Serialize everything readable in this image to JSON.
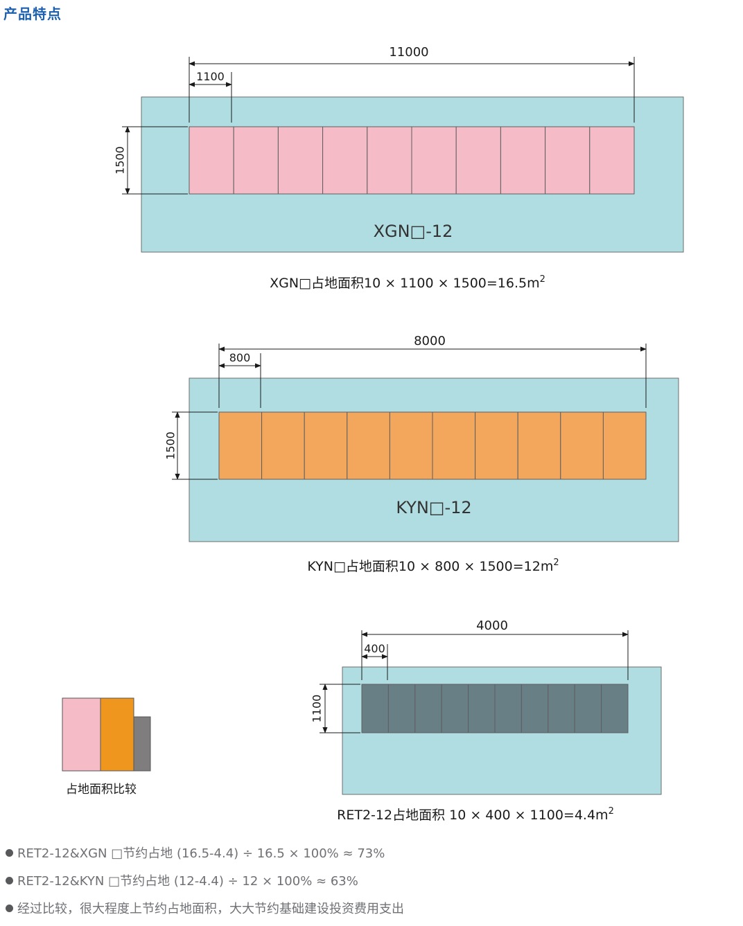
{
  "title": "产品特点",
  "colors": {
    "title": "#1b5fae",
    "floor": "#b0dde1",
    "xgn_cabinet": "#f5bcc8",
    "kyn_cabinet": "#f3a75d",
    "ret_cabinet": "#687f86",
    "outline": "#6d6d6d",
    "compare_pink": "#f5bcc8",
    "compare_orange": "#ef961f",
    "compare_gray": "#7f7d7e"
  },
  "layouts": [
    {
      "id": "xgn",
      "model_label": "XGN□-12",
      "cabinet_count": 10,
      "total_width_label": "11000",
      "unit_width_label": "1100",
      "depth_label": "1500",
      "caption": "XGN□占地面积10 × 1100 × 1500=16.5m",
      "caption_sup": "2"
    },
    {
      "id": "kyn",
      "model_label": "KYN□-12",
      "cabinet_count": 10,
      "total_width_label": "8000",
      "unit_width_label": "800",
      "depth_label": "1500",
      "caption": "KYN□占地面积10 × 800 × 1500=12m",
      "caption_sup": "2"
    },
    {
      "id": "ret",
      "model_label": "",
      "cabinet_count": 10,
      "total_width_label": "4000",
      "unit_width_label": "400",
      "depth_label": "1100",
      "caption": "RET2-12占地面积 10 × 400 × 1100=4.4m",
      "caption_sup": "2"
    }
  ],
  "comparison": {
    "label": "占地面积比较"
  },
  "bullets": [
    "RET2-12&XGN □节约占地 (16.5-4.4) ÷ 16.5 × 100% ≈ 73%",
    "RET2-12&KYN □节约占地 (12-4.4) ÷ 12 × 100% ≈ 63%",
    "经过比较，很大程度上节约占地面积，大大节约基础建设投资费用支出"
  ]
}
